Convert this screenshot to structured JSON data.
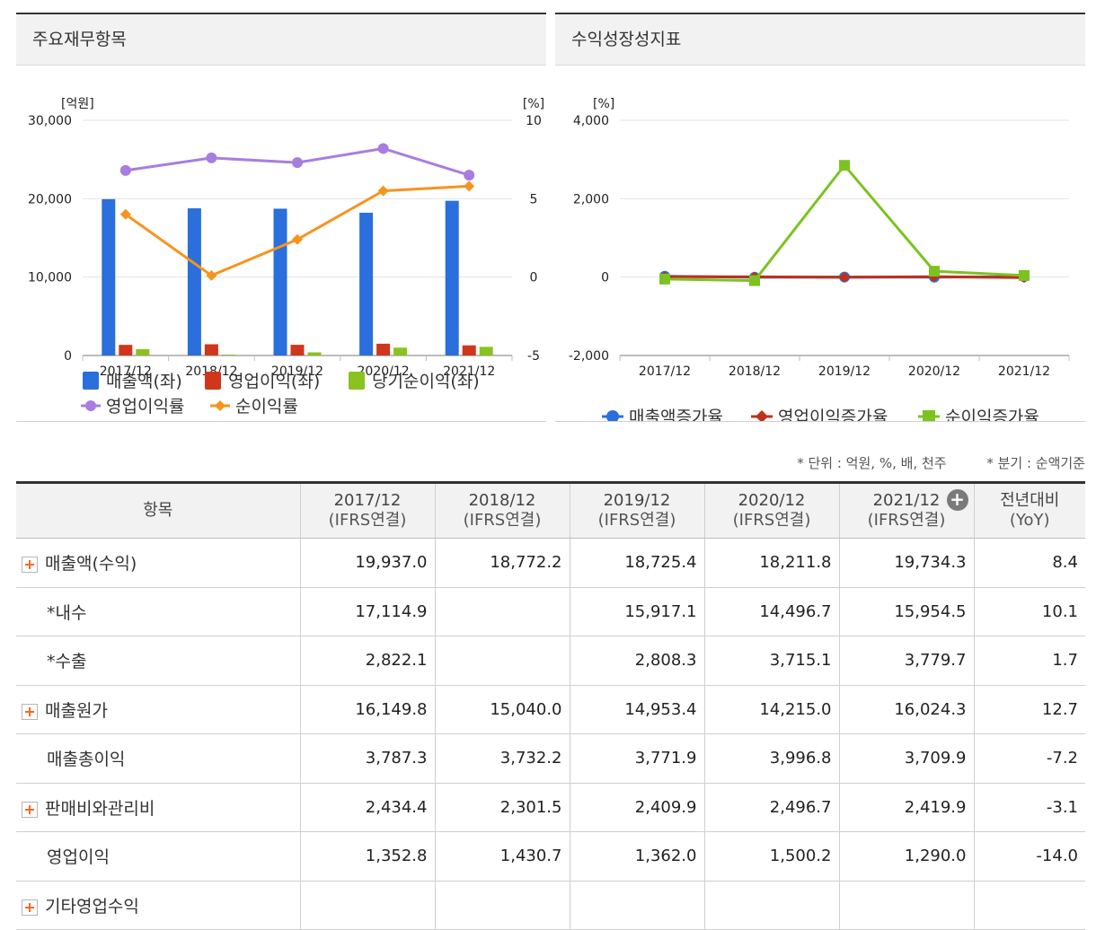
{
  "left_panel": {
    "title": "주요재무항목",
    "legend": [
      "매출액(좌)",
      "영업이익(좌)",
      "당기순이익(좌)",
      "영업이익률",
      "순이익률"
    ]
  },
  "right_panel": {
    "title": "수익성장성지표",
    "legend": [
      "매출액증가율",
      "영업이익증가율",
      "순이익증가율"
    ]
  },
  "chart_data": [
    {
      "type": "bar",
      "title": "주요재무항목",
      "categories": [
        "2017/12",
        "2018/12",
        "2019/12",
        "2020/12",
        "2021/12"
      ],
      "y_left_unit": "[억원]",
      "y_right_unit": "[%]",
      "ylim_left": [
        0,
        30000
      ],
      "ylim_right": [
        -5,
        10
      ],
      "y_left_ticks": [
        "0",
        "10,000",
        "20,000",
        "30,000"
      ],
      "y_right_ticks": [
        "-5",
        "0",
        "5",
        "10"
      ],
      "series": [
        {
          "name": "매출액(좌)",
          "kind": "bar",
          "axis": "left",
          "color": "#2a6fdb",
          "values": [
            19937.0,
            18772.2,
            18725.4,
            18211.8,
            19734.3
          ]
        },
        {
          "name": "영업이익(좌)",
          "kind": "bar",
          "axis": "left",
          "color": "#d1351b",
          "values": [
            1352.8,
            1430.7,
            1362.0,
            1500.2,
            1290.0
          ]
        },
        {
          "name": "당기순이익(좌)",
          "kind": "bar",
          "axis": "left",
          "color": "#8ac21f",
          "values": [
            800,
            100,
            400,
            1000,
            1100
          ]
        },
        {
          "name": "영업이익률",
          "kind": "line",
          "axis": "right",
          "color": "#a77ee0",
          "marker": "circle",
          "values": [
            6.8,
            7.6,
            7.3,
            8.2,
            6.5
          ]
        },
        {
          "name": "순이익률",
          "kind": "line",
          "axis": "right",
          "color": "#f7931e",
          "marker": "diamond",
          "values": [
            4.0,
            0.1,
            2.4,
            5.5,
            5.8
          ]
        }
      ],
      "grid": true,
      "legend_position": "bottom"
    },
    {
      "type": "line",
      "title": "수익성장성지표",
      "categories": [
        "2017/12",
        "2018/12",
        "2019/12",
        "2020/12",
        "2021/12"
      ],
      "y_unit": "[%]",
      "ylim": [
        -2000,
        4000
      ],
      "y_ticks": [
        "-2,000",
        "0",
        "2,000",
        "4,000"
      ],
      "series": [
        {
          "name": "매출액증가율",
          "color": "#2a6fdb",
          "marker": "circle",
          "values": [
            20,
            -5.8,
            -0.2,
            -2.7,
            8.4
          ]
        },
        {
          "name": "영업이익증가율",
          "color": "#c0301a",
          "marker": "diamond",
          "values": [
            10,
            5.8,
            -4.8,
            10.1,
            -14.0
          ]
        },
        {
          "name": "순이익증가율",
          "color": "#7cc321",
          "marker": "square",
          "values": [
            -50,
            -90,
            2850,
            150,
            40
          ]
        }
      ],
      "grid": true,
      "legend_position": "bottom"
    }
  ],
  "notes": {
    "unit": "* 단위 : 억원, %, 배, 천주",
    "quarter": "* 분기 : 순액기준"
  },
  "table": {
    "header_item": "항목",
    "periods": [
      {
        "year": "2017/12",
        "sub": "(IFRS연결)"
      },
      {
        "year": "2018/12",
        "sub": "(IFRS연결)"
      },
      {
        "year": "2019/12",
        "sub": "(IFRS연결)"
      },
      {
        "year": "2020/12",
        "sub": "(IFRS연결)"
      },
      {
        "year": "2021/12",
        "sub": "(IFRS연결)"
      }
    ],
    "yoy_label": "전년대비",
    "yoy_sub": "(YoY)",
    "rows": [
      {
        "label": "매출액(수익)",
        "expandable": true,
        "indent": false,
        "values": [
          "19,937.0",
          "18,772.2",
          "18,725.4",
          "18,211.8",
          "19,734.3"
        ],
        "yoy": "8.4",
        "yoy_negative": false
      },
      {
        "label": "*내수",
        "expandable": false,
        "indent": true,
        "values": [
          "17,114.9",
          "",
          "15,917.1",
          "14,496.7",
          "15,954.5"
        ],
        "yoy": "10.1",
        "yoy_negative": false
      },
      {
        "label": "*수출",
        "expandable": false,
        "indent": true,
        "values": [
          "2,822.1",
          "",
          "2,808.3",
          "3,715.1",
          "3,779.7"
        ],
        "yoy": "1.7",
        "yoy_negative": false
      },
      {
        "label": "매출원가",
        "expandable": true,
        "indent": false,
        "values": [
          "16,149.8",
          "15,040.0",
          "14,953.4",
          "14,215.0",
          "16,024.3"
        ],
        "yoy": "12.7",
        "yoy_negative": false
      },
      {
        "label": "매출총이익",
        "expandable": false,
        "indent": true,
        "values": [
          "3,787.3",
          "3,732.2",
          "3,771.9",
          "3,996.8",
          "3,709.9"
        ],
        "yoy": "-7.2",
        "yoy_negative": true
      },
      {
        "label": "판매비와관리비",
        "expandable": true,
        "indent": false,
        "values": [
          "2,434.4",
          "2,301.5",
          "2,409.9",
          "2,496.7",
          "2,419.9"
        ],
        "yoy": "-3.1",
        "yoy_negative": true
      },
      {
        "label": "영업이익",
        "expandable": false,
        "indent": true,
        "values": [
          "1,352.8",
          "1,430.7",
          "1,362.0",
          "1,500.2",
          "1,290.0"
        ],
        "yoy": "-14.0",
        "yoy_negative": true
      },
      {
        "label": "기타영업수익",
        "expandable": true,
        "indent": false,
        "values": [
          "",
          "",
          "",
          "",
          ""
        ],
        "yoy": "",
        "yoy_negative": false
      }
    ]
  }
}
